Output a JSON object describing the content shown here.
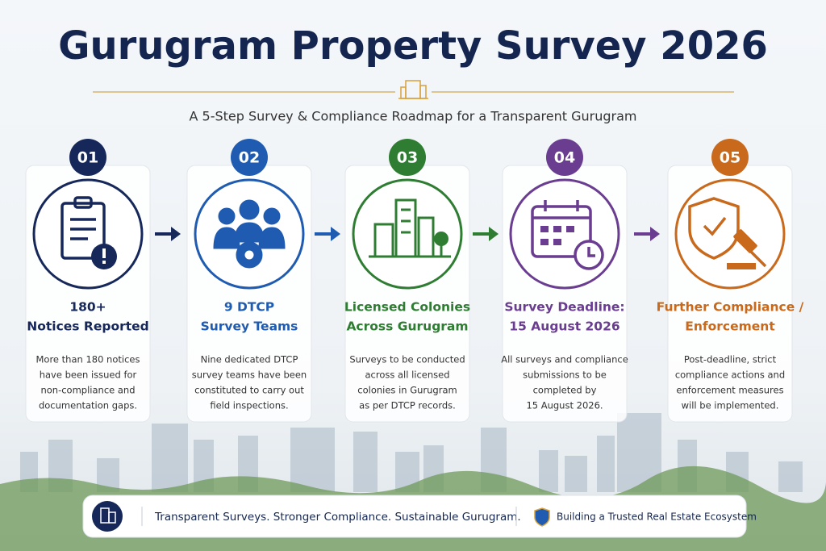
{
  "header": {
    "title": "Gurugram Property Survey 2026",
    "subtitle": "A 5-Step Survey & Compliance Roadmap for a Transparent Gurugram"
  },
  "steps": [
    {
      "number": "01",
      "color": "#16275a",
      "heading": [
        "180+",
        "Notices Reported"
      ],
      "description": [
        "More than 180 notices",
        "have been issued for",
        "non-compliance and",
        "documentation gaps."
      ]
    },
    {
      "number": "02",
      "color": "#1f5bb0",
      "heading": [
        "9 DTCP",
        "Survey Teams"
      ],
      "description": [
        "Nine dedicated DTCP",
        "survey teams have been",
        "constituted to carry out",
        "field inspections."
      ]
    },
    {
      "number": "03",
      "color": "#2e7d32",
      "heading": [
        "Licensed Colonies",
        "Across Gurugram"
      ],
      "description": [
        "Surveys to be conducted",
        "across all licensed",
        "colonies in Gurugram",
        "as per DTCP records."
      ]
    },
    {
      "number": "04",
      "color": "#6a3d91",
      "heading": [
        "Survey Deadline:",
        "15 August 2026"
      ],
      "description": [
        "All surveys and compliance",
        "submissions to be",
        "completed by",
        "15 August 2026."
      ]
    },
    {
      "number": "05",
      "color": "#c8691c",
      "heading": [
        "Further Compliance /",
        "Enforcement"
      ],
      "description": [
        "Post-deadline, strict",
        "compliance actions and",
        "enforcement measures",
        "will be implemented."
      ]
    }
  ],
  "footer": {
    "tagline": "Transparent Surveys. Stronger Compliance. Sustainable Gurugram.",
    "note": "Building a Trusted Real Estate Ecosystem"
  }
}
